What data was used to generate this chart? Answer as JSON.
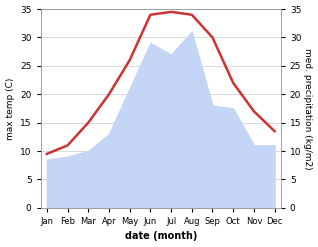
{
  "months": [
    "Jan",
    "Feb",
    "Mar",
    "Apr",
    "May",
    "Jun",
    "Jul",
    "Aug",
    "Sep",
    "Oct",
    "Nov",
    "Dec"
  ],
  "temp": [
    9.5,
    11.0,
    15.0,
    20.0,
    26.0,
    34.0,
    34.5,
    34.0,
    30.0,
    22.0,
    17.0,
    13.5
  ],
  "precip": [
    8.5,
    9.0,
    10.0,
    13.0,
    21.0,
    29.0,
    27.0,
    31.0,
    18.0,
    17.5,
    11.0,
    11.0
  ],
  "temp_color": "#cc3333",
  "precip_fill_color": "#c5d5f5",
  "ylim": [
    0,
    35
  ],
  "xlabel": "date (month)",
  "ylabel_left": "max temp (C)",
  "ylabel_right": "med. precipitation (kg/m2)",
  "yticks": [
    0,
    5,
    10,
    15,
    20,
    25,
    30,
    35
  ],
  "background_color": "#ffffff",
  "grid_color": "#cccccc"
}
